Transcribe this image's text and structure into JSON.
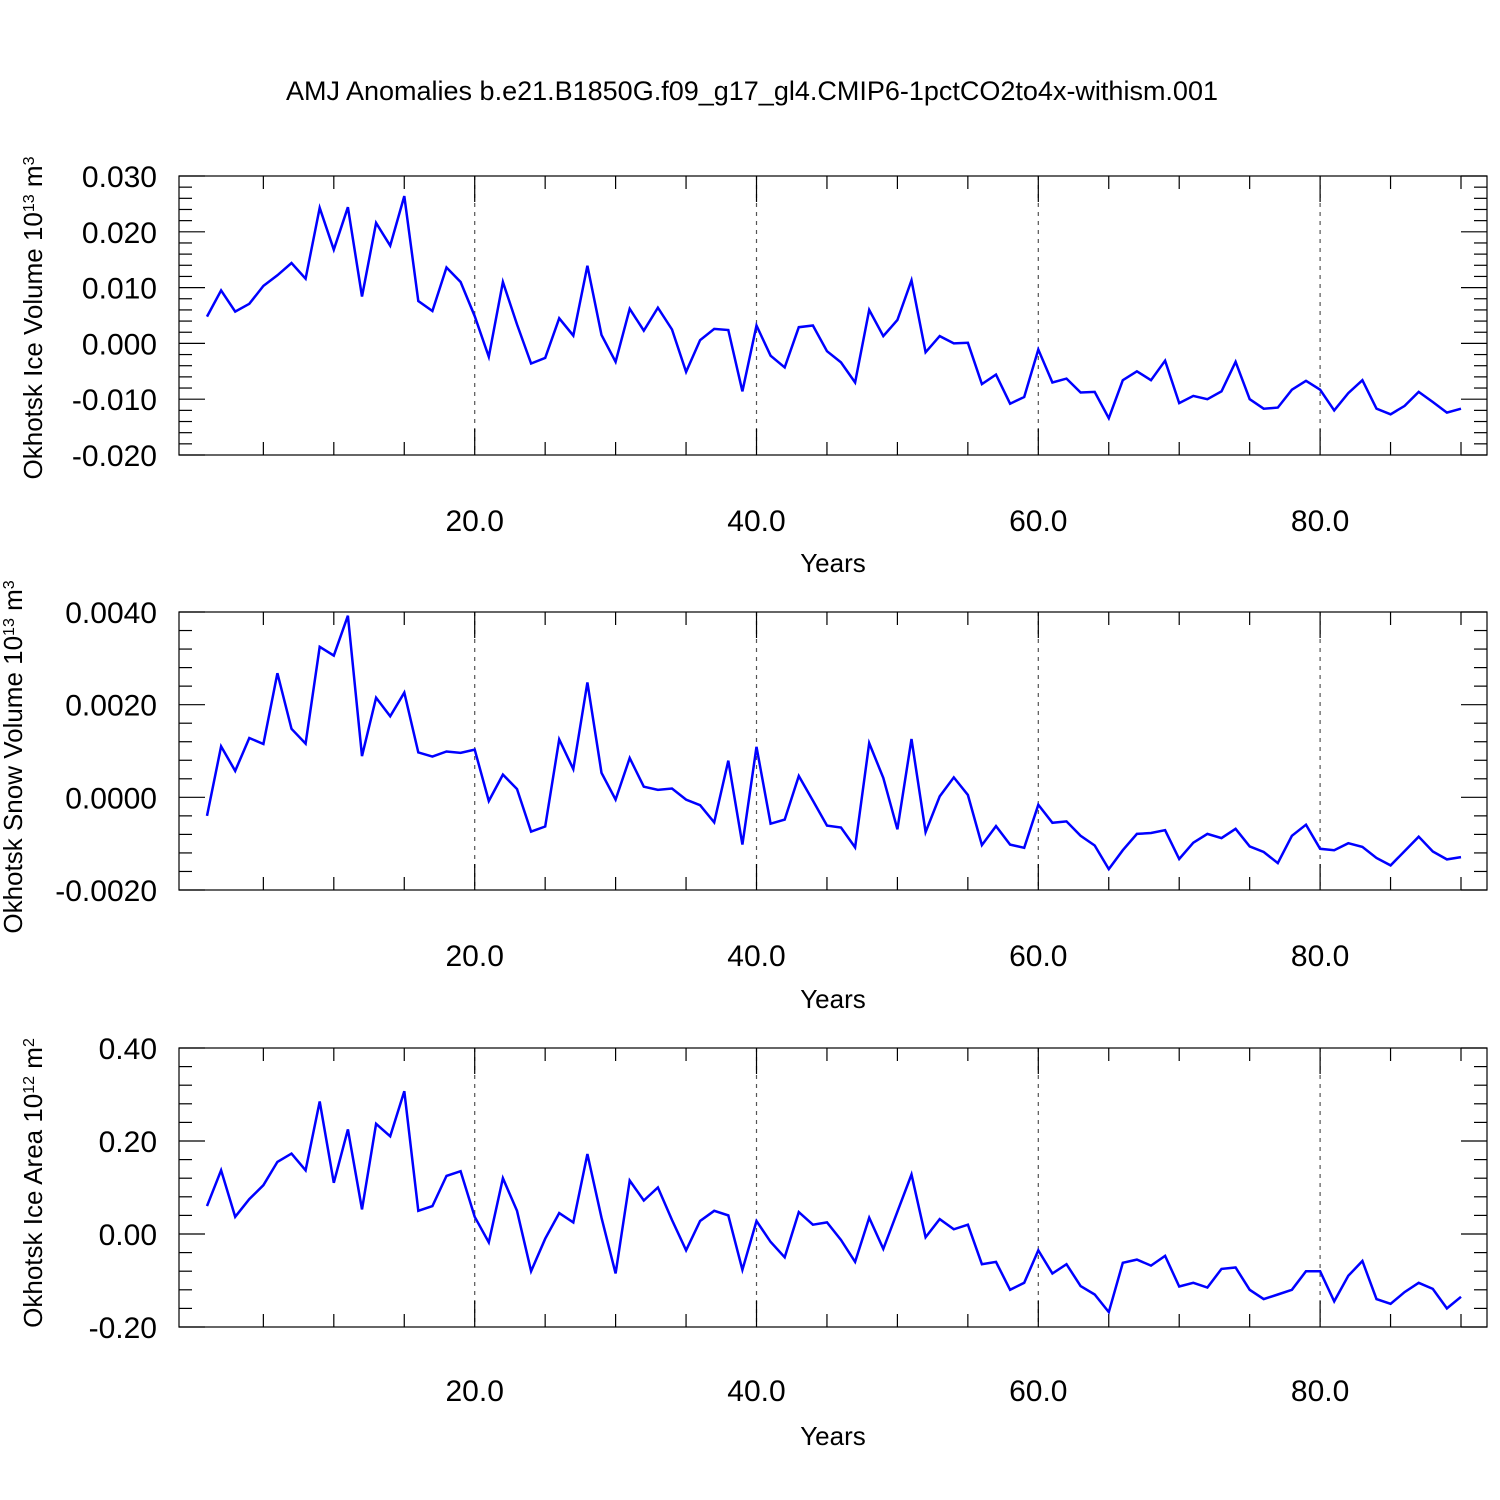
{
  "title": "AMJ Anomalies b.e21.B1850G.f09_g17_gl4.CMIP6-1pctCO2to4x-withism.001",
  "chart_data": [
    {
      "type": "line",
      "ylabel": "Okhotsk Ice Volume 10",
      "yunit_exp": "13",
      "yunit_tail": " m",
      "yunit_pow": "3",
      "xlabel": "Years",
      "xlim": [
        1,
        90
      ],
      "ylim": [
        -0.02,
        0.03
      ],
      "yticks": [
        "0.030",
        "0.020",
        "0.010",
        "0.000",
        "-0.010",
        "-0.020"
      ],
      "ytick_values": [
        0.03,
        0.02,
        0.01,
        0.0,
        -0.01,
        -0.02
      ],
      "xticks": [
        "20.0",
        "40.0",
        "60.0",
        "80.0"
      ],
      "xtick_values": [
        20,
        40,
        60,
        80
      ],
      "series_color": "#0000ff",
      "values": [
        0.0048,
        0.0095,
        0.0057,
        0.0071,
        0.0103,
        0.0122,
        0.0144,
        0.0116,
        0.0243,
        0.0168,
        0.0244,
        0.0084,
        0.0216,
        0.0175,
        0.0264,
        0.0076,
        0.0058,
        0.0136,
        0.011,
        0.0049,
        -0.0024,
        0.011,
        0.0034,
        -0.0036,
        -0.0026,
        0.0045,
        0.0014,
        0.0139,
        0.0015,
        -0.0033,
        0.0062,
        0.0023,
        0.0064,
        0.0025,
        -0.0051,
        0.0006,
        0.0026,
        0.0024,
        -0.0086,
        0.0032,
        -0.0022,
        -0.0043,
        0.0029,
        0.0032,
        -0.0014,
        -0.0034,
        -0.007,
        0.006,
        0.0013,
        0.0042,
        0.0113,
        -0.0016,
        0.0013,
        0.0,
        0.0001,
        -0.0073,
        -0.0056,
        -0.0108,
        -0.0096,
        -0.0011,
        -0.007,
        -0.0063,
        -0.0088,
        -0.0087,
        -0.0134,
        -0.0066,
        -0.005,
        -0.0066,
        -0.0031,
        -0.0107,
        -0.0094,
        -0.01,
        -0.0086,
        -0.0033,
        -0.01,
        -0.0117,
        -0.0115,
        -0.0083,
        -0.0067,
        -0.0083,
        -0.012,
        -0.0089,
        -0.0066,
        -0.0117,
        -0.0127,
        -0.0112,
        -0.0087,
        -0.0105,
        -0.0124,
        -0.0117
      ]
    },
    {
      "type": "line",
      "ylabel": "Okhotsk Snow Volume 10",
      "yunit_exp": "13",
      "yunit_tail": " m",
      "yunit_pow": "3",
      "xlabel": "Years",
      "xlim": [
        1,
        90
      ],
      "ylim": [
        -0.002,
        0.004
      ],
      "yticks": [
        "0.0040",
        "0.0020",
        "0.0000",
        "-0.0020"
      ],
      "ytick_values": [
        0.004,
        0.002,
        0.0,
        -0.002
      ],
      "xticks": [
        "20.0",
        "40.0",
        "60.0",
        "80.0"
      ],
      "xtick_values": [
        20,
        40,
        60,
        80
      ],
      "series_color": "#0000ff",
      "values": [
        -0.0004,
        0.0011,
        0.00057,
        0.00128,
        0.00115,
        0.00268,
        0.00148,
        0.00116,
        0.00325,
        0.00306,
        0.00392,
        0.00089,
        0.00215,
        0.00175,
        0.00226,
        0.00097,
        0.00088,
        0.00099,
        0.00096,
        0.00103,
        -8e-05,
        0.00049,
        0.00018,
        -0.00074,
        -0.00063,
        0.00125,
        0.00061,
        0.00248,
        0.00053,
        -5e-05,
        0.00085,
        0.00023,
        0.00016,
        0.00019,
        -5e-05,
        -0.00017,
        -0.00054,
        0.00079,
        -0.00102,
        0.00109,
        -0.00057,
        -0.00048,
        0.00046,
        -7e-05,
        -0.00061,
        -0.00065,
        -0.00108,
        0.00117,
        0.00042,
        -0.00069,
        0.00126,
        -0.00075,
        2e-05,
        0.00043,
        5e-05,
        -0.00103,
        -0.00062,
        -0.00102,
        -0.00109,
        -0.00016,
        -0.00055,
        -0.00052,
        -0.00083,
        -0.00104,
        -0.00155,
        -0.00114,
        -0.00079,
        -0.00077,
        -0.00071,
        -0.00133,
        -0.00098,
        -0.00079,
        -0.00088,
        -0.00068,
        -0.00106,
        -0.00118,
        -0.00142,
        -0.00083,
        -0.00059,
        -0.00111,
        -0.00114,
        -0.00099,
        -0.00107,
        -0.00131,
        -0.00147,
        -0.00116,
        -0.00085,
        -0.00117,
        -0.00134,
        -0.00129
      ]
    },
    {
      "type": "line",
      "ylabel": "Okhotsk Ice Area 10",
      "yunit_exp": "12",
      "yunit_tail": " m",
      "yunit_pow": "2",
      "xlabel": "Years",
      "xlim": [
        1,
        90
      ],
      "ylim": [
        -0.2,
        0.4
      ],
      "yticks": [
        "0.40",
        "0.20",
        "0.00",
        "-0.20"
      ],
      "ytick_values": [
        0.4,
        0.2,
        0.0,
        -0.2
      ],
      "xticks": [
        "20.0",
        "40.0",
        "60.0",
        "80.0"
      ],
      "xtick_values": [
        20,
        40,
        60,
        80
      ],
      "series_color": "#0000ff",
      "values": [
        0.06,
        0.137,
        0.037,
        0.075,
        0.105,
        0.155,
        0.173,
        0.137,
        0.285,
        0.11,
        0.225,
        0.053,
        0.237,
        0.21,
        0.307,
        0.05,
        0.06,
        0.125,
        0.135,
        0.037,
        -0.018,
        0.12,
        0.05,
        -0.08,
        -0.01,
        0.045,
        0.025,
        0.172,
        0.035,
        -0.085,
        0.115,
        0.072,
        0.1,
        0.03,
        -0.035,
        0.028,
        0.05,
        0.04,
        -0.077,
        0.028,
        -0.017,
        -0.05,
        0.047,
        0.02,
        0.025,
        -0.013,
        -0.06,
        0.035,
        -0.032,
        0.048,
        0.128,
        -0.007,
        0.032,
        0.01,
        0.02,
        -0.065,
        -0.06,
        -0.12,
        -0.105,
        -0.035,
        -0.085,
        -0.065,
        -0.112,
        -0.13,
        -0.168,
        -0.062,
        -0.055,
        -0.068,
        -0.047,
        -0.113,
        -0.105,
        -0.115,
        -0.075,
        -0.072,
        -0.12,
        -0.14,
        -0.13,
        -0.12,
        -0.08,
        -0.08,
        -0.145,
        -0.09,
        -0.058,
        -0.14,
        -0.15,
        -0.125,
        -0.105,
        -0.118,
        -0.16,
        -0.135
      ]
    }
  ]
}
